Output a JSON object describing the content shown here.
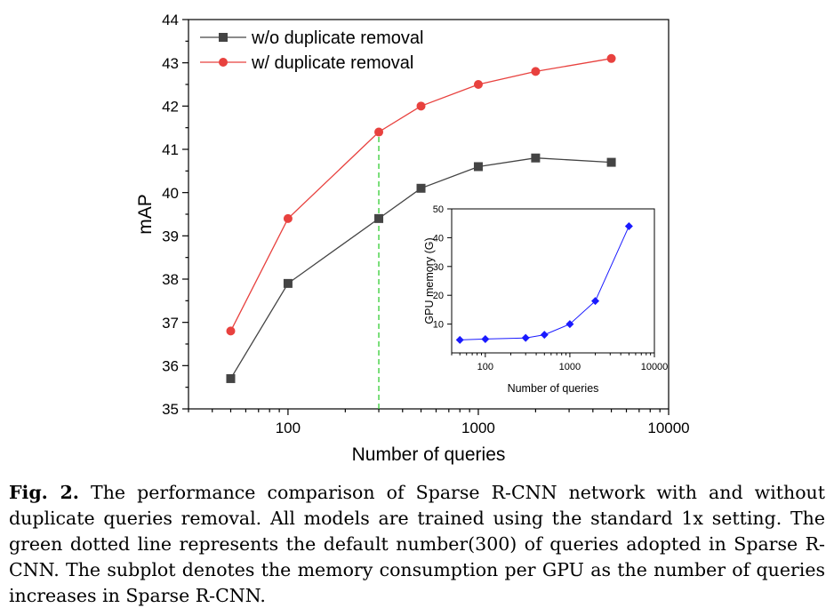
{
  "chart_data": [
    {
      "type": "line",
      "xscale": "log",
      "x": [
        50,
        100,
        300,
        500,
        1000,
        2000,
        5000
      ],
      "series": [
        {
          "name": "w/o duplicate removal",
          "marker": "square",
          "color": "#444444",
          "values": [
            35.7,
            37.9,
            39.4,
            40.1,
            40.6,
            40.8,
            40.7
          ]
        },
        {
          "name": "w/ duplicate removal",
          "marker": "circle",
          "color": "#e8413e",
          "values": [
            36.8,
            39.4,
            41.4,
            42.0,
            42.5,
            42.8,
            43.1
          ]
        }
      ],
      "xlabel": "Number of queries",
      "ylabel": "mAP",
      "xlim": [
        30,
        10000
      ],
      "ylim": [
        35,
        44
      ],
      "xticks": [
        100,
        1000,
        10000
      ],
      "xtick_labels": [
        "100",
        "1000",
        "10000"
      ],
      "yticks": [
        35,
        36,
        37,
        38,
        39,
        40,
        41,
        42,
        43,
        44
      ],
      "ytick_labels": [
        "35",
        "36",
        "37",
        "38",
        "39",
        "40",
        "41",
        "42",
        "43",
        "44"
      ],
      "annotations": [
        {
          "type": "vline",
          "x": 300,
          "style": "dashed",
          "color": "#33cc33"
        }
      ],
      "legend_position": "top-left"
    },
    {
      "type": "line",
      "xscale": "log",
      "x": [
        50,
        100,
        300,
        500,
        1000,
        2000,
        5000
      ],
      "series": [
        {
          "name": "GPU memory",
          "marker": "diamond",
          "color": "#1a1aff",
          "values": [
            4.5,
            4.8,
            5.2,
            6.3,
            10.0,
            18.0,
            44.0
          ]
        }
      ],
      "xlabel": "Number of queries",
      "ylabel": "GPU memory (G)",
      "xlim": [
        40,
        10000
      ],
      "ylim": [
        0,
        50
      ],
      "xticks": [
        100,
        1000,
        10000
      ],
      "xtick_labels": [
        "100",
        "1000",
        "10000"
      ],
      "yticks": [
        10,
        20,
        30,
        40,
        50
      ],
      "ytick_labels": [
        "10",
        "20",
        "30",
        "40",
        "50"
      ]
    }
  ],
  "caption": {
    "label": "Fig. 2.",
    "text": "The performance comparison of Sparse R-CNN network with and without duplicate queries removal. All models are trained using the standard 1x setting. The green dotted line represents the default number(300) of queries adopted in Sparse R-CNN. The subplot denotes the memory consumption per GPU as the number of queries increases in Sparse R-CNN."
  }
}
